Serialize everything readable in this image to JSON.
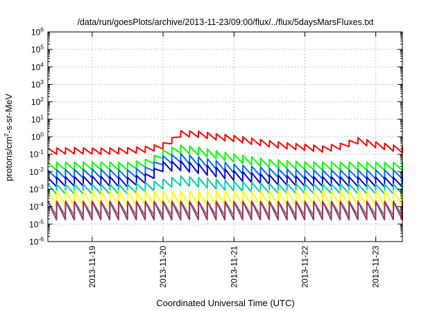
{
  "chart_data": {
    "type": "line",
    "title": "/data/run/goesPlots/archive/2013-11-23/09:00/flux/../flux/5daysMarsFluxes.txt",
    "xlabel": "Coordinated Universal Time (UTC)",
    "ylabel": "protons/cm²-s-sr-MeV",
    "ylabel_parts": {
      "base": "protons/cm",
      "sup": "2",
      "rest": "-s-sr-MeV"
    },
    "y_scale": "log",
    "ylim": [
      1e-06,
      1000000.0
    ],
    "y_tick_labels": [
      {
        "base": "10",
        "exp": "-6"
      },
      {
        "base": "10",
        "exp": "-5"
      },
      {
        "base": "10",
        "exp": "-4"
      },
      {
        "base": "10",
        "exp": "-3"
      },
      {
        "base": "10",
        "exp": "-2"
      },
      {
        "base": "10",
        "exp": "-1"
      },
      {
        "base": "10",
        "exp": "0"
      },
      {
        "base": "10",
        "exp": "1"
      },
      {
        "base": "10",
        "exp": "2"
      },
      {
        "base": "10",
        "exp": "3"
      },
      {
        "base": "10",
        "exp": "4"
      },
      {
        "base": "10",
        "exp": "5"
      },
      {
        "base": "10",
        "exp": "6"
      }
    ],
    "xlim": [
      "2013-11-18 09:00",
      "2013-11-23 09:00"
    ],
    "x_tick_labels": [
      "2013-11-19",
      "2013-11-20",
      "2013-11-21",
      "2013-11-22",
      "2013-11-23"
    ],
    "x_ticks": [
      "2013-11-19 00:00",
      "2013-11-20 00:00",
      "2013-11-21 00:00",
      "2013-11-22 00:00",
      "2013-11-23 00:00"
    ],
    "grid": true,
    "legend": "none",
    "sawtooth_period_hours": 3,
    "series": [
      {
        "color": "#ff0000",
        "values": [
          [
            "2013-11-18 09:00",
            0.15
          ],
          [
            "2013-11-18 18:00",
            0.16
          ],
          [
            "2013-11-19 03:00",
            0.15
          ],
          [
            "2013-11-19 12:00",
            0.16
          ],
          [
            "2013-11-19 18:00",
            0.19
          ],
          [
            "2013-11-19 21:00",
            0.23
          ],
          [
            "2013-11-20 00:00",
            0.3
          ],
          [
            "2013-11-20 03:00",
            0.6
          ],
          [
            "2013-11-20 06:00",
            1.5
          ],
          [
            "2013-11-20 12:00",
            1.4
          ],
          [
            "2013-11-20 18:00",
            1.0
          ],
          [
            "2013-11-21 00:00",
            0.8
          ],
          [
            "2013-11-21 06:00",
            0.55
          ],
          [
            "2013-11-21 12:00",
            0.4
          ],
          [
            "2013-11-21 18:00",
            0.3
          ],
          [
            "2013-11-22 00:00",
            0.25
          ],
          [
            "2013-11-22 06:00",
            0.2
          ],
          [
            "2013-11-22 12:00",
            0.28
          ],
          [
            "2013-11-22 18:00",
            0.6
          ],
          [
            "2013-11-23 00:00",
            0.35
          ],
          [
            "2013-11-23 09:00",
            0.18
          ]
        ]
      },
      {
        "color": "#00ff00",
        "values": [
          [
            "2013-11-18 09:00",
            0.02
          ],
          [
            "2013-11-19 00:00",
            0.022
          ],
          [
            "2013-11-19 12:00",
            0.02
          ],
          [
            "2013-11-19 18:00",
            0.03
          ],
          [
            "2013-11-19 21:00",
            0.05
          ],
          [
            "2013-11-20 00:00",
            0.1
          ],
          [
            "2013-11-20 03:00",
            0.15
          ],
          [
            "2013-11-20 06:00",
            0.2
          ],
          [
            "2013-11-20 12:00",
            0.15
          ],
          [
            "2013-11-21 00:00",
            0.06
          ],
          [
            "2013-11-21 12:00",
            0.03
          ],
          [
            "2013-11-22 00:00",
            0.022
          ],
          [
            "2013-11-23 09:00",
            0.02
          ]
        ]
      },
      {
        "color": "#0066ff",
        "values": [
          [
            "2013-11-18 09:00",
            0.007
          ],
          [
            "2013-11-19 00:00",
            0.008
          ],
          [
            "2013-11-19 12:00",
            0.007
          ],
          [
            "2013-11-19 18:00",
            0.01
          ],
          [
            "2013-11-19 21:00",
            0.02
          ],
          [
            "2013-11-20 00:00",
            0.045
          ],
          [
            "2013-11-20 06:00",
            0.06
          ],
          [
            "2013-11-20 12:00",
            0.04
          ],
          [
            "2013-11-21 00:00",
            0.015
          ],
          [
            "2013-11-21 12:00",
            0.009
          ],
          [
            "2013-11-22 00:00",
            0.007
          ],
          [
            "2013-11-23 09:00",
            0.007
          ]
        ]
      },
      {
        "color": "#0000cc",
        "values": [
          [
            "2013-11-18 09:00",
            0.0025
          ],
          [
            "2013-11-19 00:00",
            0.003
          ],
          [
            "2013-11-19 12:00",
            0.0025
          ],
          [
            "2013-11-19 18:00",
            0.004
          ],
          [
            "2013-11-19 21:00",
            0.008
          ],
          [
            "2013-11-20 00:00",
            0.02
          ],
          [
            "2013-11-20 06:00",
            0.022
          ],
          [
            "2013-11-20 12:00",
            0.015
          ],
          [
            "2013-11-21 00:00",
            0.006
          ],
          [
            "2013-11-21 12:00",
            0.0035
          ],
          [
            "2013-11-22 00:00",
            0.0028
          ],
          [
            "2013-11-23 09:00",
            0.0025
          ]
        ]
      },
      {
        "color": "#00ccaa",
        "values": [
          [
            "2013-11-18 09:00",
            0.001
          ],
          [
            "2013-11-19 12:00",
            0.001
          ],
          [
            "2013-11-19 21:00",
            0.0015
          ],
          [
            "2013-11-20 00:00",
            0.002
          ],
          [
            "2013-11-20 06:00",
            0.003
          ],
          [
            "2013-11-20 12:00",
            0.0025
          ],
          [
            "2013-11-21 00:00",
            0.0015
          ],
          [
            "2013-11-21 12:00",
            0.0011
          ],
          [
            "2013-11-23 09:00",
            0.001
          ]
        ]
      },
      {
        "color": "#ffff00",
        "values": [
          [
            "2013-11-18 09:00",
            0.0003
          ],
          [
            "2013-11-23 09:00",
            0.0003
          ]
        ]
      },
      {
        "color": "#888888",
        "values": [
          [
            "2013-11-18 09:00",
            8e-05
          ],
          [
            "2013-11-23 09:00",
            8e-05
          ]
        ]
      },
      {
        "color": "#993366",
        "values": [
          [
            "2013-11-18 09:00",
            6e-05
          ],
          [
            "2013-11-23 09:00",
            6e-05
          ]
        ]
      }
    ]
  }
}
